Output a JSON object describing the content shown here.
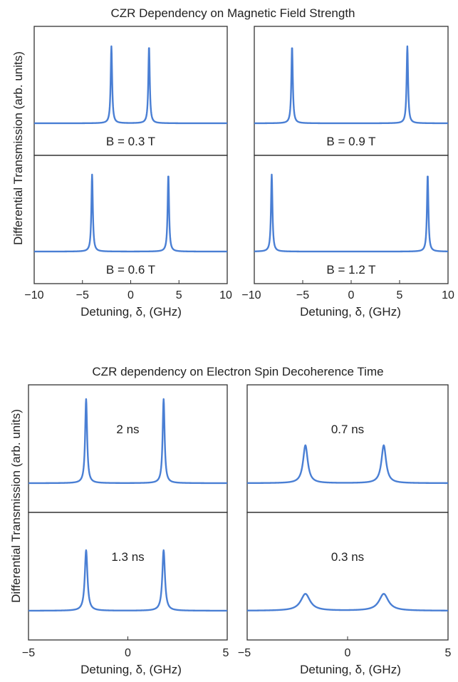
{
  "figure_a": {
    "title": "CZR Dependency on Magnetic Field Strength",
    "ylabel": "Differential Transmission (arb. units)",
    "xlabel": "Detuning, δ, (GHz)"
  },
  "figure_b": {
    "title": "CZR dependency on Electron Spin Decoherence Time",
    "ylabel": "Differential Transmission (arb. units)",
    "xlabel": "Detuning, δ, (GHz)"
  },
  "chart_data": [
    {
      "type": "line",
      "title": "CZR Dependency on Magnetic Field Strength",
      "xlabel": "Detuning, δ, (GHz)",
      "ylabel": "Differential Transmission (arb. units)",
      "xlim": [
        -10,
        10
      ],
      "x_ticks": [
        "−10",
        "−5",
        "0",
        "5",
        "10"
      ],
      "panels": [
        {
          "label": "B = 0.3 T",
          "position": "top-left",
          "peaks": [
            -2.0,
            1.9
          ],
          "height": 1.0,
          "width": 0.09
        },
        {
          "label": "B = 0.9 T",
          "position": "top-right",
          "peaks": [
            -6.1,
            5.8
          ],
          "height": 1.0,
          "width": 0.09
        },
        {
          "label": "B = 0.6 T",
          "position": "bottom-left",
          "peaks": [
            -4.0,
            3.9
          ],
          "height": 1.0,
          "width": 0.09
        },
        {
          "label": "B = 1.2 T",
          "position": "bottom-right",
          "peaks": [
            -8.2,
            7.9
          ],
          "height": 1.0,
          "width": 0.09
        }
      ]
    },
    {
      "type": "line",
      "title": "CZR dependency on Electron Spin Decoherence Time",
      "xlabel": "Detuning, δ, (GHz)",
      "ylabel": "Differential Transmission (arb. units)",
      "xlim": [
        -5,
        5
      ],
      "x_ticks": [
        "−5",
        "0",
        "5"
      ],
      "panels": [
        {
          "label": "2 ns",
          "position": "top-left",
          "peaks": [
            -2.1,
            1.8
          ],
          "height": 1.0,
          "width": 0.06
        },
        {
          "label": "0.7 ns",
          "position": "top-right",
          "peaks": [
            -2.1,
            1.8
          ],
          "height": 0.45,
          "width": 0.14
        },
        {
          "label": "1.3 ns",
          "position": "bottom-left",
          "peaks": [
            -2.1,
            1.8
          ],
          "height": 0.72,
          "width": 0.08
        },
        {
          "label": "0.3 ns",
          "position": "bottom-right",
          "peaks": [
            -2.1,
            1.8
          ],
          "height": 0.2,
          "width": 0.28
        }
      ]
    }
  ]
}
